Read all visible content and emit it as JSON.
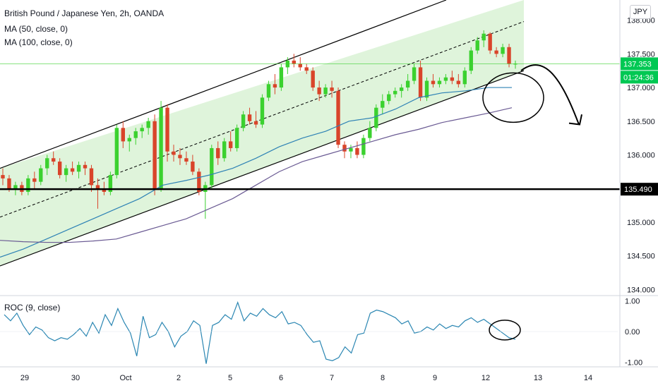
{
  "legend": {
    "symbol": "British Pound / Japanese Yen, 2h, OANDA",
    "ma50": "MA (50, close, 0)",
    "ma100": "MA (100, close, 0)",
    "roc": "ROC (9, close)"
  },
  "currency_button": "JPY",
  "price_labels": {
    "last_price": "137.353",
    "countdown": "01:24:36",
    "support": "135.490"
  },
  "colors": {
    "up": "#26a69a",
    "up_candle": "#3bd12f",
    "down_candle": "#d9442a",
    "channel_fill": "#d9f2d5",
    "ma50": "#2e82b5",
    "ma100": "#6a5a93",
    "roc_line": "#2a86b2",
    "support_line": "#000000",
    "last_price_bg": "#00c853"
  },
  "chart_data": [
    {
      "type": "candlestick",
      "title": "British Pound / Japanese Yen, 2h, OANDA",
      "y_ticks": [
        "138.000",
        "137.500",
        "137.000",
        "136.500",
        "136.000",
        "135.500",
        "135.000",
        "134.500",
        "134.000"
      ],
      "x_ticks": [
        "29",
        "30",
        "Oct",
        "2",
        "5",
        "6",
        "7",
        "8",
        "9",
        "12",
        "13",
        "14"
      ],
      "ylim": [
        133.92,
        138.3
      ],
      "candles": [
        [
          135.7,
          135.8,
          135.55,
          135.65
        ],
        [
          135.65,
          135.7,
          135.45,
          135.5
        ],
        [
          135.5,
          135.6,
          135.4,
          135.55
        ],
        [
          135.55,
          135.6,
          135.4,
          135.45
        ],
        [
          135.45,
          135.7,
          135.4,
          135.65
        ],
        [
          135.65,
          135.75,
          135.5,
          135.6
        ],
        [
          135.6,
          135.85,
          135.55,
          135.8
        ],
        [
          135.8,
          136.0,
          135.7,
          135.95
        ],
        [
          135.95,
          136.05,
          135.85,
          135.9
        ],
        [
          135.9,
          135.95,
          135.65,
          135.7
        ],
        [
          135.7,
          135.85,
          135.6,
          135.8
        ],
        [
          135.8,
          135.9,
          135.7,
          135.75
        ],
        [
          135.75,
          135.9,
          135.65,
          135.85
        ],
        [
          135.85,
          135.9,
          135.7,
          135.8
        ],
        [
          135.8,
          135.85,
          135.45,
          135.55
        ],
        [
          135.55,
          135.65,
          135.2,
          135.5
        ],
        [
          135.5,
          135.6,
          135.4,
          135.45
        ],
        [
          135.45,
          135.75,
          135.4,
          135.7
        ],
        [
          135.7,
          136.45,
          135.65,
          136.4
        ],
        [
          136.4,
          136.5,
          136.1,
          136.2
        ],
        [
          136.2,
          136.3,
          136.05,
          136.25
        ],
        [
          136.25,
          136.4,
          136.15,
          136.35
        ],
        [
          136.35,
          136.45,
          136.25,
          136.4
        ],
        [
          136.4,
          136.55,
          136.3,
          136.5
        ],
        [
          136.5,
          136.6,
          135.4,
          135.5
        ],
        [
          135.5,
          136.8,
          135.45,
          136.7
        ],
        [
          136.7,
          136.75,
          135.9,
          136.05
        ],
        [
          136.05,
          136.15,
          135.9,
          136.0
        ],
        [
          136.0,
          136.1,
          135.85,
          135.95
        ],
        [
          135.95,
          136.05,
          135.85,
          135.9
        ],
        [
          135.9,
          136.0,
          135.7,
          135.75
        ],
        [
          135.75,
          135.8,
          135.4,
          135.45
        ],
        [
          135.45,
          135.6,
          135.05,
          135.55
        ],
        [
          135.55,
          136.15,
          135.5,
          136.1
        ],
        [
          136.1,
          136.2,
          135.85,
          135.95
        ],
        [
          135.95,
          136.25,
          135.9,
          136.2
        ],
        [
          136.2,
          136.35,
          136.05,
          136.1
        ],
        [
          136.1,
          136.45,
          136.05,
          136.4
        ],
        [
          136.4,
          136.65,
          136.35,
          136.6
        ],
        [
          136.6,
          136.7,
          136.45,
          136.5
        ],
        [
          136.5,
          136.65,
          136.4,
          136.45
        ],
        [
          136.45,
          136.9,
          136.4,
          136.85
        ],
        [
          136.85,
          137.1,
          136.8,
          137.05
        ],
        [
          137.05,
          137.2,
          136.9,
          137.0
        ],
        [
          137.0,
          137.35,
          136.95,
          137.3
        ],
        [
          137.3,
          137.45,
          137.2,
          137.4
        ],
        [
          137.4,
          137.5,
          137.3,
          137.35
        ],
        [
          137.35,
          137.45,
          137.25,
          137.3
        ],
        [
          137.3,
          137.35,
          137.2,
          137.25
        ],
        [
          137.25,
          137.3,
          136.95,
          137.0
        ],
        [
          137.0,
          137.1,
          136.8,
          136.9
        ],
        [
          136.9,
          137.05,
          136.85,
          137.0
        ],
        [
          137.0,
          137.1,
          136.85,
          136.95
        ],
        [
          136.95,
          137.0,
          136.1,
          136.15
        ],
        [
          136.15,
          136.2,
          135.95,
          136.05
        ],
        [
          136.05,
          136.15,
          135.95,
          136.1
        ],
        [
          136.1,
          136.2,
          135.95,
          136.0
        ],
        [
          136.0,
          136.3,
          135.95,
          136.25
        ],
        [
          136.25,
          136.5,
          136.2,
          136.4
        ],
        [
          136.4,
          136.75,
          136.35,
          136.7
        ],
        [
          136.7,
          136.9,
          136.6,
          136.8
        ],
        [
          136.8,
          136.95,
          136.75,
          136.9
        ],
        [
          136.9,
          137.0,
          136.85,
          136.95
        ],
        [
          136.95,
          137.05,
          136.85,
          137.0
        ],
        [
          137.0,
          137.2,
          136.95,
          137.1
        ],
        [
          137.1,
          137.35,
          137.05,
          137.3
        ],
        [
          137.3,
          137.4,
          136.8,
          136.85
        ],
        [
          136.85,
          137.15,
          136.8,
          137.1
        ],
        [
          137.1,
          137.2,
          137.0,
          137.05
        ],
        [
          137.05,
          137.15,
          137.0,
          137.1
        ],
        [
          137.1,
          137.2,
          137.05,
          137.15
        ],
        [
          137.15,
          137.25,
          137.05,
          137.1
        ],
        [
          137.1,
          137.2,
          137.0,
          137.05
        ],
        [
          137.05,
          137.3,
          137.0,
          137.25
        ],
        [
          137.25,
          137.6,
          137.2,
          137.55
        ],
        [
          137.55,
          137.75,
          137.5,
          137.7
        ],
        [
          137.7,
          137.85,
          137.6,
          137.8
        ],
        [
          137.8,
          137.82,
          137.5,
          137.55
        ],
        [
          137.55,
          137.6,
          137.45,
          137.5
        ],
        [
          137.5,
          137.65,
          137.45,
          137.6
        ],
        [
          137.6,
          137.65,
          137.3,
          137.35
        ],
        [
          137.35,
          137.4,
          137.28,
          137.353
        ]
      ],
      "ma50": [
        134.48,
        134.6,
        134.75,
        134.9,
        135.05,
        135.2,
        135.35,
        135.55,
        135.62,
        135.7,
        135.8,
        135.95,
        136.12,
        136.25,
        136.35,
        136.5,
        136.55,
        136.68,
        136.85,
        136.92,
        136.95,
        137.0,
        137.0
      ],
      "ma100": [
        134.73,
        134.71,
        134.7,
        134.7,
        134.72,
        134.75,
        134.85,
        134.95,
        135.05,
        135.2,
        135.35,
        135.55,
        135.75,
        135.9,
        136.0,
        136.1,
        136.2,
        136.3,
        136.38,
        136.48,
        136.55,
        136.62,
        136.7
      ],
      "support_level": 135.49,
      "annotations": [
        "ascending channel",
        "channel midline",
        "bearish arrow",
        "circle at channel breakdown"
      ]
    },
    {
      "type": "line",
      "title": "ROC (9, close)",
      "y_ticks": [
        "1.00",
        "0.00",
        "-1.00"
      ],
      "ylim": [
        -1.15,
        1.15
      ],
      "values": [
        0.55,
        0.35,
        0.6,
        0.2,
        -0.1,
        0.15,
        0.05,
        -0.2,
        -0.3,
        -0.2,
        -0.25,
        -0.1,
        0.1,
        -0.15,
        0.3,
        -0.05,
        0.55,
        0.2,
        0.75,
        0.3,
        -0.05,
        -0.8,
        0.5,
        -0.2,
        -0.1,
        0.3,
        0.0,
        -0.5,
        -0.15,
        0.0,
        0.35,
        0.2,
        -1.05,
        0.2,
        0.3,
        0.55,
        0.4,
        0.95,
        0.35,
        0.6,
        0.5,
        0.75,
        0.55,
        0.45,
        0.65,
        0.25,
        0.3,
        0.2,
        -0.1,
        -0.35,
        -0.3,
        -0.9,
        -0.95,
        -0.85,
        -0.5,
        -0.7,
        -0.1,
        -0.05,
        0.6,
        0.7,
        0.65,
        0.55,
        0.45,
        0.25,
        0.35,
        -0.05,
        0.0,
        0.15,
        0.05,
        0.25,
        0.1,
        0.2,
        0.15,
        0.35,
        0.45,
        0.3,
        0.4,
        0.25,
        0.1,
        -0.05,
        -0.2,
        -0.25
      ]
    }
  ]
}
